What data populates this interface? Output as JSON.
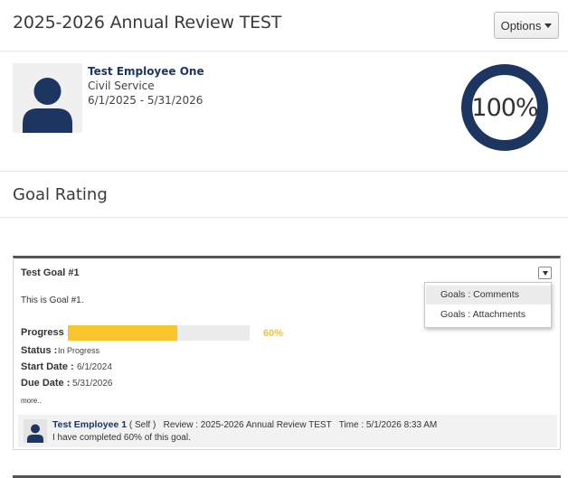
{
  "header": {
    "title": "2025-2026 Annual Review TEST",
    "options_label": "Options"
  },
  "employee": {
    "name": "Test Employee One",
    "type": "Civil Service",
    "dates": "6/1/2025 - 5/31/2026",
    "completion_label": "100%",
    "completion_value": 100
  },
  "section": {
    "title": "Goal Rating"
  },
  "goal": {
    "title": "Test Goal #1",
    "description": "This is Goal #1.",
    "progress_label": "Progress :",
    "progress_value": 60,
    "progress_text": "60%",
    "status_label": "Status :",
    "status_value": "In Progress",
    "start_label": "Start Date :",
    "start_value": "6/1/2024",
    "due_label": "Due Date :",
    "due_value": "5/31/2026",
    "more_label": "more.."
  },
  "comment": {
    "author": "Test Employee 1",
    "role": "( Self )",
    "review": "Review : 2025-2026 Annual Review TEST",
    "time": "Time : 5/1/2026 8:33 AM",
    "text": "I have completed 60% of this goal."
  },
  "menu": {
    "items": [
      "Goals : Comments",
      "Goals : Attachments"
    ]
  },
  "colors": {
    "brand_navy": "#1c3561",
    "progress_fill": "#f9c42d",
    "progress_text": "#f5c23a"
  }
}
